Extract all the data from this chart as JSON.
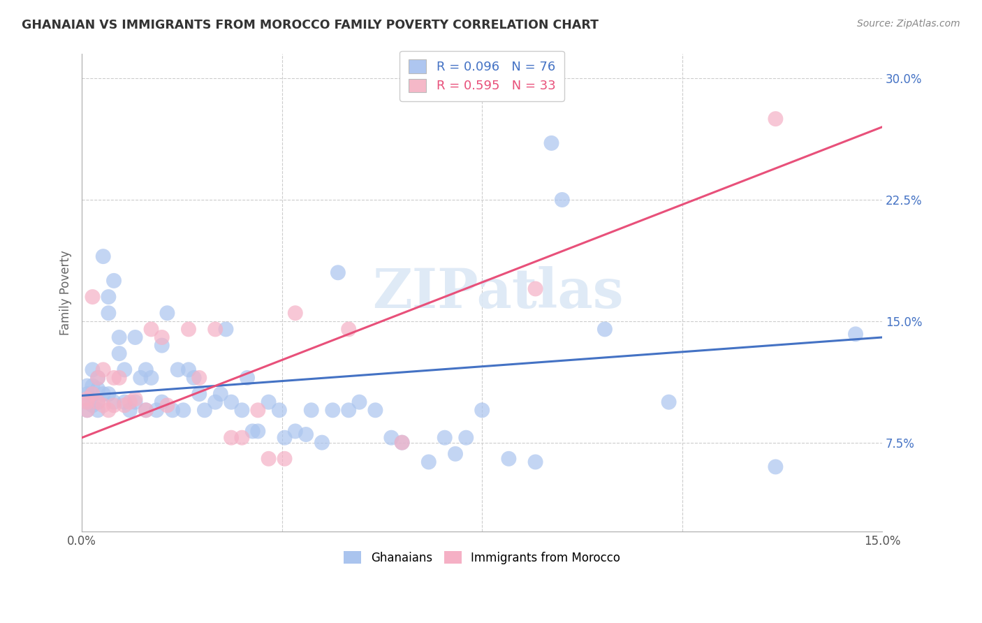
{
  "title": "GHANAIAN VS IMMIGRANTS FROM MOROCCO FAMILY POVERTY CORRELATION CHART",
  "source": "Source: ZipAtlas.com",
  "ylabel": "Family Poverty",
  "xmin": 0.0,
  "xmax": 0.15,
  "ymin": 0.02,
  "ymax": 0.315,
  "legend1_label": "R = 0.096   N = 76",
  "legend2_label": "R = 0.595   N = 33",
  "legend_color1": "#aec6f0",
  "legend_color2": "#f5b8c8",
  "line1_color": "#4472c4",
  "line2_color": "#e8507a",
  "scatter1_color": "#aac4ee",
  "scatter2_color": "#f5b0c5",
  "watermark": "ZIPatlas",
  "blue_line_x0": 0.0,
  "blue_line_y0": 0.104,
  "blue_line_x1": 0.15,
  "blue_line_y1": 0.14,
  "pink_line_x0": 0.0,
  "pink_line_y0": 0.078,
  "pink_line_x1": 0.15,
  "pink_line_y1": 0.27,
  "ghanaian_x": [
    0.001,
    0.001,
    0.001,
    0.001,
    0.002,
    0.002,
    0.002,
    0.002,
    0.003,
    0.003,
    0.003,
    0.003,
    0.004,
    0.004,
    0.005,
    0.005,
    0.005,
    0.006,
    0.006,
    0.007,
    0.007,
    0.008,
    0.008,
    0.009,
    0.01,
    0.01,
    0.011,
    0.012,
    0.012,
    0.013,
    0.014,
    0.015,
    0.015,
    0.016,
    0.017,
    0.018,
    0.019,
    0.02,
    0.021,
    0.022,
    0.023,
    0.025,
    0.026,
    0.027,
    0.028,
    0.03,
    0.031,
    0.032,
    0.033,
    0.035,
    0.037,
    0.038,
    0.04,
    0.042,
    0.043,
    0.045,
    0.047,
    0.048,
    0.05,
    0.052,
    0.055,
    0.058,
    0.06,
    0.065,
    0.068,
    0.07,
    0.072,
    0.075,
    0.08,
    0.085,
    0.088,
    0.09,
    0.098,
    0.11,
    0.13,
    0.145
  ],
  "ghanaian_y": [
    0.105,
    0.11,
    0.1,
    0.095,
    0.12,
    0.11,
    0.105,
    0.098,
    0.115,
    0.108,
    0.1,
    0.095,
    0.19,
    0.105,
    0.165,
    0.155,
    0.105,
    0.175,
    0.1,
    0.14,
    0.13,
    0.12,
    0.1,
    0.095,
    0.14,
    0.1,
    0.115,
    0.12,
    0.095,
    0.115,
    0.095,
    0.135,
    0.1,
    0.155,
    0.095,
    0.12,
    0.095,
    0.12,
    0.115,
    0.105,
    0.095,
    0.1,
    0.105,
    0.145,
    0.1,
    0.095,
    0.115,
    0.082,
    0.082,
    0.1,
    0.095,
    0.078,
    0.082,
    0.08,
    0.095,
    0.075,
    0.095,
    0.18,
    0.095,
    0.1,
    0.095,
    0.078,
    0.075,
    0.063,
    0.078,
    0.068,
    0.078,
    0.095,
    0.065,
    0.063,
    0.26,
    0.225,
    0.145,
    0.1,
    0.06,
    0.142
  ],
  "morocco_x": [
    0.001,
    0.001,
    0.001,
    0.002,
    0.002,
    0.003,
    0.003,
    0.004,
    0.004,
    0.005,
    0.006,
    0.006,
    0.007,
    0.008,
    0.009,
    0.01,
    0.012,
    0.013,
    0.015,
    0.016,
    0.02,
    0.022,
    0.025,
    0.028,
    0.03,
    0.033,
    0.035,
    0.038,
    0.04,
    0.05,
    0.06,
    0.085,
    0.13
  ],
  "morocco_y": [
    0.102,
    0.1,
    0.095,
    0.165,
    0.105,
    0.115,
    0.1,
    0.12,
    0.098,
    0.095,
    0.115,
    0.098,
    0.115,
    0.098,
    0.1,
    0.102,
    0.095,
    0.145,
    0.14,
    0.098,
    0.145,
    0.115,
    0.145,
    0.078,
    0.078,
    0.095,
    0.065,
    0.065,
    0.155,
    0.145,
    0.075,
    0.17,
    0.275
  ]
}
